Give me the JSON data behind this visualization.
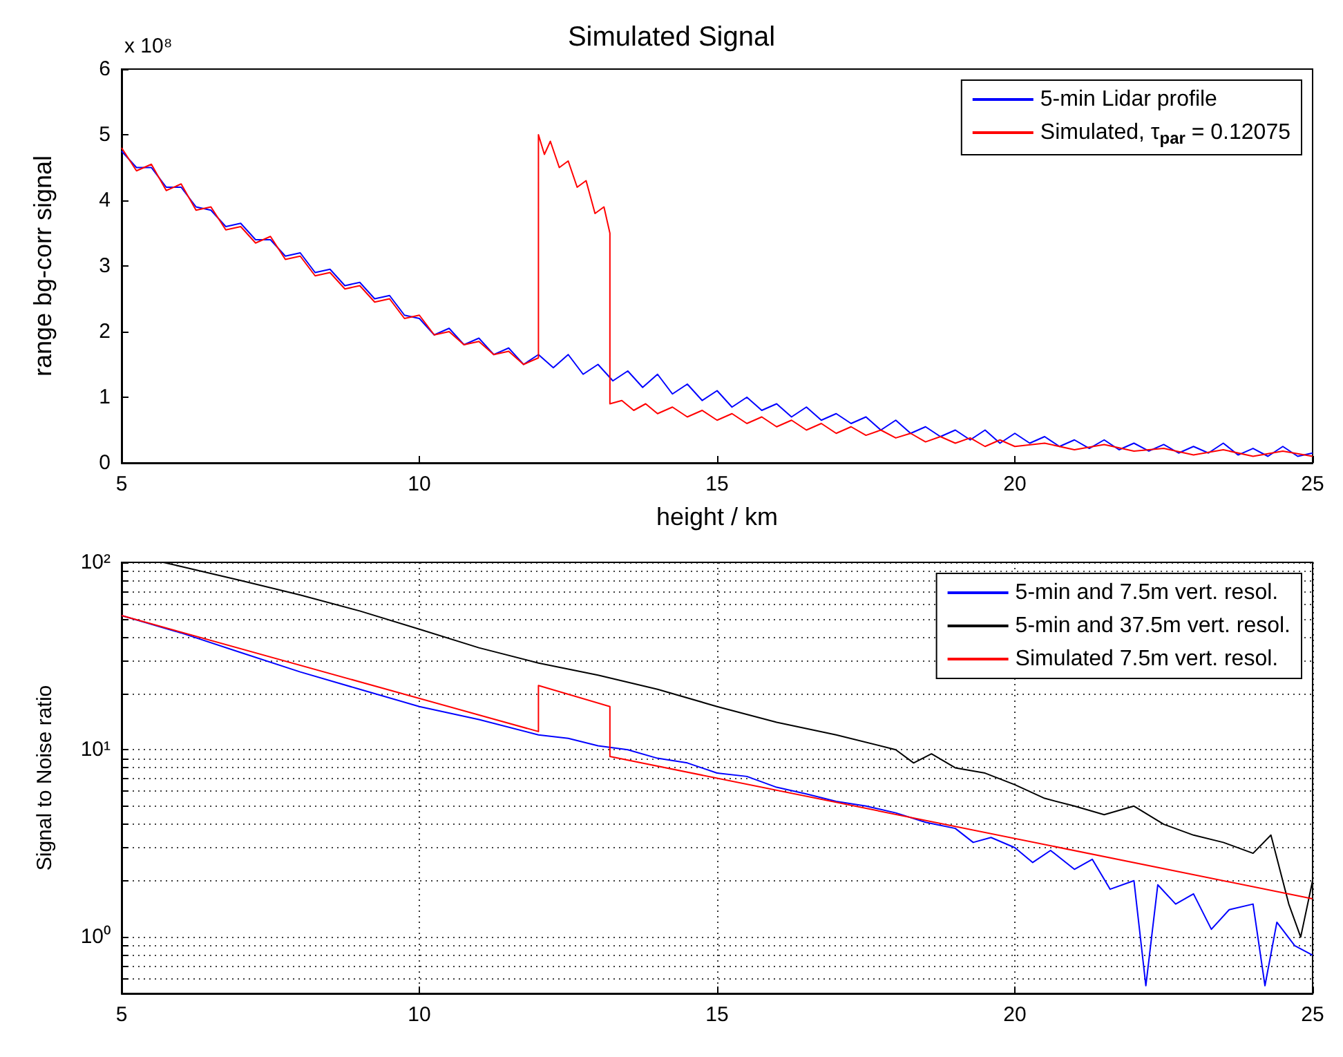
{
  "chart_data": [
    {
      "type": "line",
      "title": "Simulated Signal",
      "xlabel": "height / km",
      "ylabel": "range bg-corr signal",
      "annotations": [
        "x 10⁸"
      ],
      "xlim": [
        5,
        25
      ],
      "xticks": [
        5,
        10,
        15,
        20,
        25
      ],
      "ylim": [
        0,
        6
      ],
      "yticks": [
        0,
        1,
        2,
        3,
        4,
        5,
        6
      ],
      "grid": false,
      "legend": "top right",
      "series": [
        {
          "name": "5-min Lidar profile",
          "color": "#0000ff",
          "x": [
            5,
            5.25,
            5.5,
            5.75,
            6,
            6.25,
            6.5,
            6.75,
            7,
            7.25,
            7.5,
            7.75,
            8,
            8.25,
            8.5,
            8.75,
            9,
            9.25,
            9.5,
            9.75,
            10,
            10.25,
            10.5,
            10.75,
            11,
            11.25,
            11.5,
            11.75,
            12,
            12.25,
            12.5,
            12.75,
            13,
            13.25,
            13.5,
            13.75,
            14,
            14.25,
            14.5,
            14.75,
            15,
            15.25,
            15.5,
            15.75,
            16,
            16.25,
            16.5,
            16.75,
            17,
            17.25,
            17.5,
            17.75,
            18,
            18.25,
            18.5,
            18.75,
            19,
            19.25,
            19.5,
            19.75,
            20,
            20.25,
            20.5,
            20.75,
            21,
            21.25,
            21.5,
            21.75,
            22,
            22.25,
            22.5,
            22.75,
            23,
            23.25,
            23.5,
            23.75,
            24,
            24.25,
            24.5,
            24.75,
            25
          ],
          "values": [
            4.75,
            4.5,
            4.5,
            4.2,
            4.2,
            3.9,
            3.85,
            3.6,
            3.65,
            3.4,
            3.4,
            3.15,
            3.2,
            2.9,
            2.95,
            2.7,
            2.75,
            2.5,
            2.55,
            2.25,
            2.2,
            1.95,
            2.05,
            1.8,
            1.9,
            1.65,
            1.75,
            1.5,
            1.65,
            1.45,
            1.65,
            1.35,
            1.5,
            1.25,
            1.4,
            1.15,
            1.35,
            1.05,
            1.2,
            0.95,
            1.1,
            0.85,
            1.0,
            0.8,
            0.9,
            0.7,
            0.85,
            0.65,
            0.75,
            0.6,
            0.7,
            0.5,
            0.65,
            0.45,
            0.55,
            0.4,
            0.5,
            0.35,
            0.5,
            0.3,
            0.45,
            0.3,
            0.4,
            0.25,
            0.35,
            0.22,
            0.35,
            0.2,
            0.3,
            0.18,
            0.28,
            0.15,
            0.25,
            0.15,
            0.3,
            0.12,
            0.22,
            0.1,
            0.25,
            0.1,
            0.15
          ]
        },
        {
          "name": "Simulated, τ$_{par}$ = 0.12075",
          "color": "#ff0000",
          "x": [
            5,
            5.25,
            5.5,
            5.75,
            6,
            6.25,
            6.5,
            6.75,
            7,
            7.25,
            7.5,
            7.75,
            8,
            8.25,
            8.5,
            8.75,
            9,
            9.25,
            9.5,
            9.75,
            10,
            10.25,
            10.5,
            10.75,
            11,
            11.25,
            11.5,
            11.75,
            12,
            12,
            12.1,
            12.2,
            12.35,
            12.5,
            12.65,
            12.8,
            12.95,
            13.1,
            13.2,
            13.2,
            13.4,
            13.6,
            13.8,
            14,
            14.25,
            14.5,
            14.75,
            15,
            15.25,
            15.5,
            15.75,
            16,
            16.25,
            16.5,
            16.75,
            17,
            17.25,
            17.5,
            17.75,
            18,
            18.25,
            18.5,
            18.75,
            19,
            19.25,
            19.5,
            19.75,
            20,
            20.5,
            21,
            21.5,
            22,
            22.5,
            23,
            23.5,
            24,
            24.5,
            25
          ],
          "values": [
            4.8,
            4.45,
            4.55,
            4.15,
            4.25,
            3.85,
            3.9,
            3.55,
            3.6,
            3.35,
            3.45,
            3.1,
            3.15,
            2.85,
            2.9,
            2.65,
            2.7,
            2.45,
            2.5,
            2.2,
            2.25,
            1.95,
            2.0,
            1.8,
            1.85,
            1.65,
            1.7,
            1.5,
            1.6,
            5.0,
            4.7,
            4.9,
            4.5,
            4.6,
            4.2,
            4.3,
            3.8,
            3.9,
            3.5,
            0.9,
            0.95,
            0.8,
            0.9,
            0.75,
            0.85,
            0.7,
            0.8,
            0.65,
            0.75,
            0.6,
            0.7,
            0.55,
            0.65,
            0.5,
            0.6,
            0.45,
            0.55,
            0.42,
            0.5,
            0.38,
            0.45,
            0.32,
            0.4,
            0.3,
            0.38,
            0.25,
            0.35,
            0.25,
            0.3,
            0.2,
            0.28,
            0.18,
            0.22,
            0.12,
            0.2,
            0.1,
            0.18,
            0.1
          ]
        }
      ]
    },
    {
      "type": "line",
      "ylabel": "Signal to Noise ratio",
      "log": true,
      "xlim": [
        5,
        25
      ],
      "xticks": [
        5,
        10,
        15,
        20,
        25
      ],
      "ylim": [
        0.5,
        100
      ],
      "yticks": [
        {
          "value": 0.5,
          "label": null
        },
        {
          "value": 0.6,
          "label": null
        },
        {
          "value": 0.7,
          "label": null
        },
        {
          "value": 0.8,
          "label": null
        },
        {
          "value": 0.9,
          "label": null
        },
        {
          "value": 1,
          "label": "10⁰"
        },
        {
          "value": 2,
          "label": null
        },
        {
          "value": 3,
          "label": null
        },
        {
          "value": 4,
          "label": null
        },
        {
          "value": 5,
          "label": null
        },
        {
          "value": 6,
          "label": null
        },
        {
          "value": 7,
          "label": null
        },
        {
          "value": 8,
          "label": null
        },
        {
          "value": 9,
          "label": null
        },
        {
          "value": 10,
          "label": "10¹"
        },
        {
          "value": 20,
          "label": null
        },
        {
          "value": 30,
          "label": null
        },
        {
          "value": 40,
          "label": null
        },
        {
          "value": 50,
          "label": null
        },
        {
          "value": 60,
          "label": null
        },
        {
          "value": 70,
          "label": null
        },
        {
          "value": 80,
          "label": null
        },
        {
          "value": 90,
          "label": null
        },
        {
          "value": 100,
          "label": "10²"
        }
      ],
      "grid": true,
      "legend": "top right",
      "series": [
        {
          "name": "5-min and 7.5m vert. resol.",
          "color": "#0000ff",
          "x": [
            5,
            6,
            7,
            8,
            9,
            10,
            11,
            12,
            12.5,
            13,
            13.5,
            14,
            14.5,
            15,
            15.5,
            16,
            16.5,
            17,
            17.5,
            18,
            18.5,
            19,
            19.3,
            19.6,
            20,
            20.3,
            20.6,
            21,
            21.3,
            21.6,
            22,
            22.2,
            22.4,
            22.7,
            23,
            23.3,
            23.6,
            24,
            24.2,
            24.4,
            24.7,
            25
          ],
          "values": [
            52,
            42,
            33,
            26,
            21,
            17,
            14.5,
            12,
            11.5,
            10.5,
            10,
            9,
            8.5,
            7.5,
            7.2,
            6.3,
            5.8,
            5.3,
            5,
            4.6,
            4.1,
            3.8,
            3.2,
            3.4,
            3.0,
            2.5,
            2.9,
            2.3,
            2.6,
            1.8,
            2.0,
            0.55,
            1.9,
            1.5,
            1.7,
            1.1,
            1.4,
            1.5,
            0.55,
            1.2,
            0.9,
            0.8
          ]
        },
        {
          "name": "5-min and 37.5m vert. resol.",
          "color": "#000000",
          "x": [
            5.7,
            6,
            7,
            8,
            9,
            10,
            11,
            12,
            13,
            14,
            15,
            16,
            17,
            18,
            18.3,
            18.6,
            19,
            19.5,
            20,
            20.5,
            21,
            21.5,
            22,
            22.5,
            23,
            23.5,
            24,
            24.3,
            24.6,
            24.8,
            25
          ],
          "values": [
            100,
            95,
            80,
            67,
            55,
            44,
            35,
            29,
            25,
            21,
            17,
            14,
            12,
            10,
            8.5,
            9.5,
            8,
            7.5,
            6.5,
            5.5,
            5,
            4.5,
            5,
            4,
            3.5,
            3.2,
            2.8,
            3.5,
            1.5,
            1.0,
            2
          ]
        },
        {
          "name": "Simulated 7.5m vert. resol.",
          "color": "#ff0000",
          "x": [
            5,
            12,
            12,
            13.2,
            13.2,
            25
          ],
          "values": [
            52,
            12.5,
            22,
            17,
            9.2,
            1.6
          ]
        }
      ]
    }
  ]
}
